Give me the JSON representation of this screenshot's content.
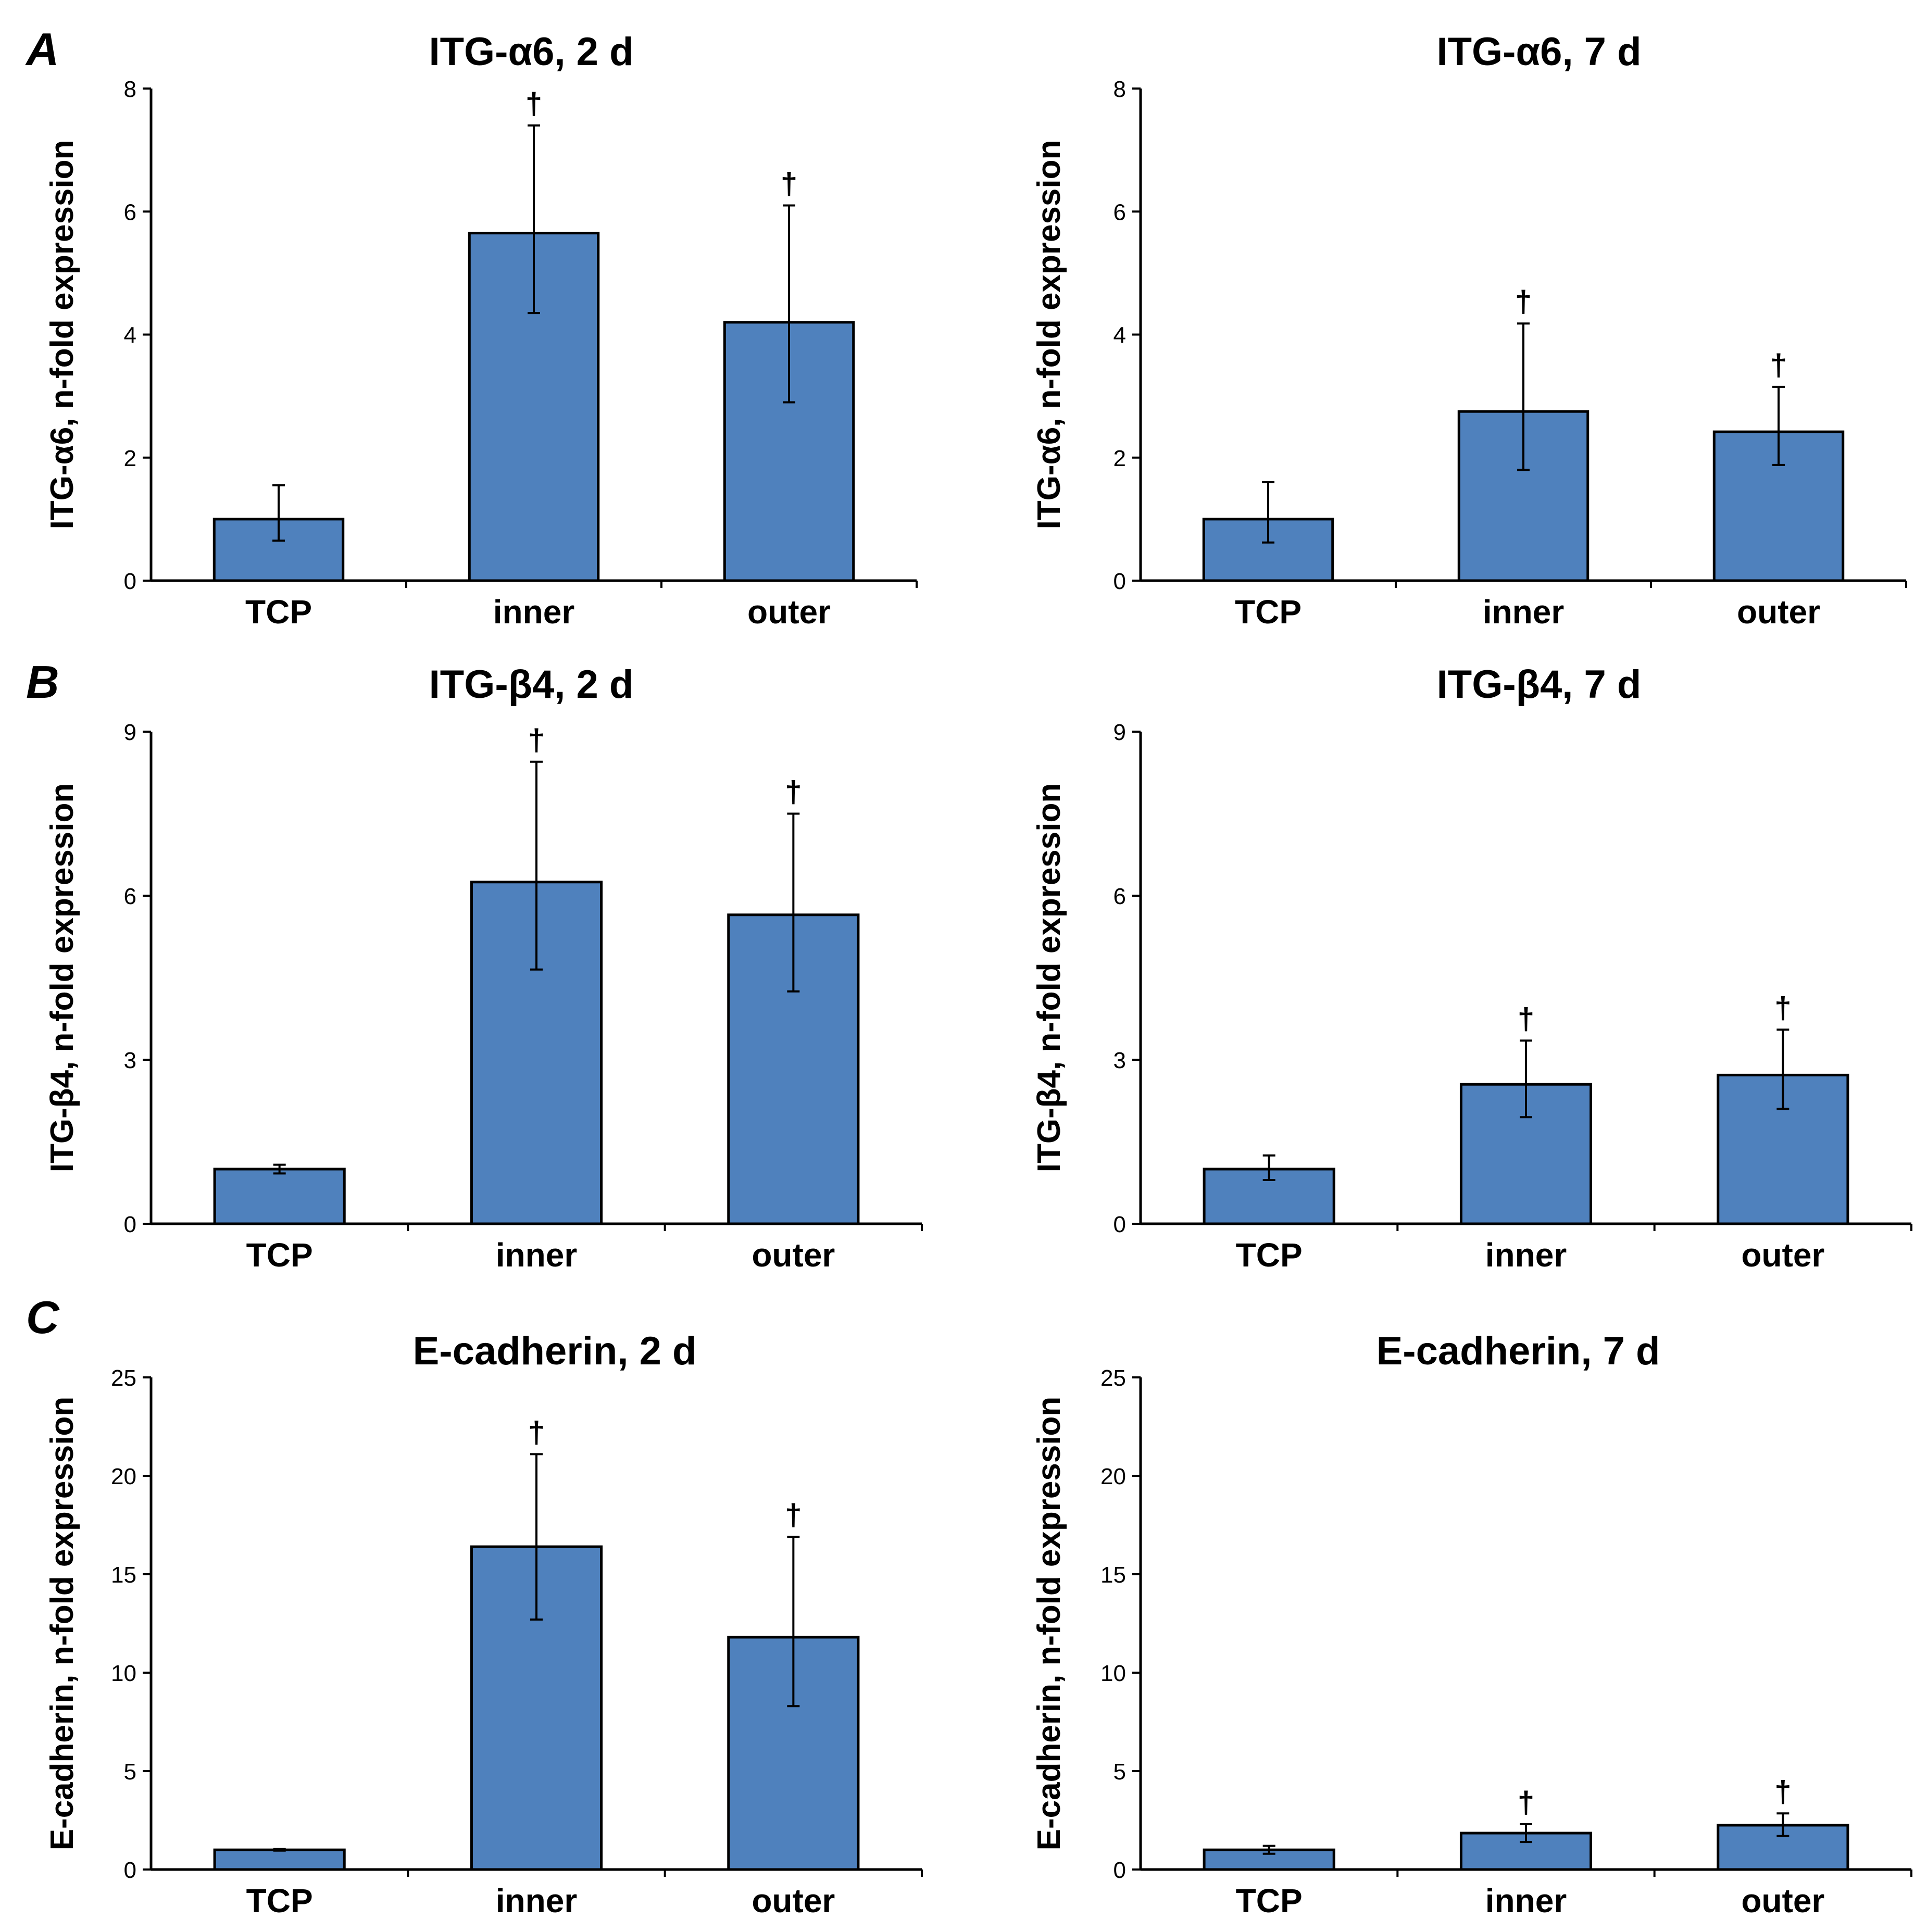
{
  "panel_letters": [
    "A",
    "B",
    "C"
  ],
  "colors": {
    "bar_fill": "#4f81bd",
    "bar_stroke": "#000000",
    "axis": "#000000"
  },
  "chart_data": [
    {
      "type": "bar",
      "panel": "A",
      "title": "ITG-α6, 2 d",
      "xlabel": "",
      "ylabel": "ITG-α6, n-fold expression",
      "ylim": [
        0,
        8
      ],
      "yticks": [
        0,
        2,
        4,
        6,
        8
      ],
      "categories": [
        "TCP",
        "inner",
        "outer"
      ],
      "values": [
        1.0,
        5.65,
        4.2
      ],
      "error_low": [
        0.65,
        4.35,
        2.9
      ],
      "error_high": [
        1.55,
        7.4,
        6.1
      ],
      "significance": [
        "",
        "†",
        "†"
      ]
    },
    {
      "type": "bar",
      "panel": "",
      "title": "ITG-α6, 7 d",
      "xlabel": "",
      "ylabel": "ITG-α6, n-fold expression",
      "ylim": [
        0,
        8
      ],
      "yticks": [
        0,
        2,
        4,
        6,
        8
      ],
      "categories": [
        "TCP",
        "inner",
        "outer"
      ],
      "values": [
        1.0,
        2.75,
        2.42
      ],
      "error_low": [
        0.62,
        1.8,
        1.88
      ],
      "error_high": [
        1.6,
        4.18,
        3.15
      ],
      "significance": [
        "",
        "†",
        "†"
      ]
    },
    {
      "type": "bar",
      "panel": "B",
      "title": "ITG-β4, 2 d",
      "xlabel": "",
      "ylabel": "ITG-β4, n-fold expression",
      "ylim": [
        0,
        9
      ],
      "yticks": [
        0,
        3,
        6,
        9
      ],
      "categories": [
        "TCP",
        "inner",
        "outer"
      ],
      "values": [
        1.0,
        6.25,
        5.65
      ],
      "error_low": [
        0.92,
        4.65,
        4.25
      ],
      "error_high": [
        1.08,
        8.45,
        7.5
      ],
      "significance": [
        "",
        "†",
        "†"
      ]
    },
    {
      "type": "bar",
      "panel": "",
      "title": "ITG-β4, 7 d",
      "xlabel": "",
      "ylabel": "ITG-β4, n-fold expression",
      "ylim": [
        0,
        9
      ],
      "yticks": [
        0,
        3,
        6,
        9
      ],
      "categories": [
        "TCP",
        "inner",
        "outer"
      ],
      "values": [
        1.0,
        2.55,
        2.72
      ],
      "error_low": [
        0.8,
        1.95,
        2.1
      ],
      "error_high": [
        1.25,
        3.35,
        3.55
      ],
      "significance": [
        "",
        "†",
        "†"
      ]
    },
    {
      "type": "bar",
      "panel": "C",
      "title": "E-cadherin, 2 d",
      "xlabel": "",
      "ylabel": "E-cadherin, n-fold expression",
      "ylim": [
        0,
        25
      ],
      "yticks": [
        0,
        5,
        10,
        15,
        20,
        25
      ],
      "categories": [
        "TCP",
        "inner",
        "outer"
      ],
      "values": [
        1.0,
        16.4,
        11.8
      ],
      "error_low": [
        0.96,
        12.7,
        8.3
      ],
      "error_high": [
        1.04,
        21.1,
        16.9
      ],
      "significance": [
        "",
        "†",
        "†"
      ]
    },
    {
      "type": "bar",
      "panel": "",
      "title": "E-cadherin, 7 d",
      "xlabel": "",
      "ylabel": "E-cadherin, n-fold expression",
      "ylim": [
        0,
        25
      ],
      "yticks": [
        0,
        5,
        10,
        15,
        20,
        25
      ],
      "categories": [
        "TCP",
        "inner",
        "outer"
      ],
      "values": [
        1.0,
        1.85,
        2.25
      ],
      "error_low": [
        0.8,
        1.4,
        1.7
      ],
      "error_high": [
        1.2,
        2.3,
        2.85
      ],
      "significance": [
        "",
        "†",
        "†"
      ]
    }
  ]
}
